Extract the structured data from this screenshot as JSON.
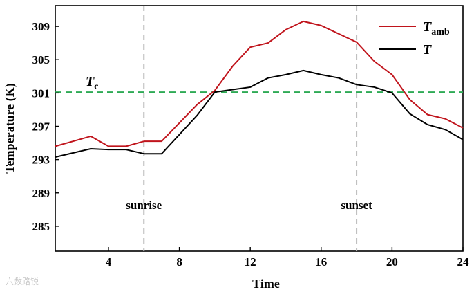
{
  "chart_data": {
    "type": "line",
    "xlabel": "Time",
    "ylabel": "Temperature (K)",
    "xlim": [
      1,
      24
    ],
    "ylim": [
      282,
      311.5
    ],
    "xticks": [
      4,
      8,
      12,
      16,
      20,
      24
    ],
    "yticks": [
      285,
      289,
      293,
      297,
      301,
      305,
      309
    ],
    "x": [
      1,
      2,
      3,
      4,
      5,
      6,
      7,
      8,
      9,
      10,
      11,
      12,
      13,
      14,
      15,
      16,
      17,
      18,
      19,
      20,
      21,
      22,
      23,
      24
    ],
    "series": [
      {
        "name": "T",
        "name_sub": "amb",
        "color": "#c0141c",
        "values": [
          294.6,
          295.2,
          295.8,
          294.6,
          294.6,
          295.2,
          295.2,
          297.4,
          299.6,
          301.3,
          304.2,
          306.5,
          307.0,
          308.6,
          309.6,
          309.1,
          308.1,
          307.1,
          304.8,
          303.2,
          300.2,
          298.4,
          297.9,
          296.8
        ],
        "values_note": "",
        "legend": "top-right"
      },
      {
        "name": "T",
        "name_sub": "",
        "color": "#000000",
        "values": [
          293.3,
          293.8,
          294.3,
          294.2,
          294.2,
          293.7,
          293.7,
          296.0,
          298.3,
          301.1,
          301.4,
          301.7,
          302.8,
          303.2,
          303.7,
          303.2,
          302.8,
          302.0,
          301.7,
          301.0,
          298.5,
          297.2,
          296.6,
          295.4
        ]
      }
    ],
    "reference_lines": [
      {
        "axis": "y",
        "value": 301.1,
        "label": "T",
        "label_sub": "c",
        "color": "#2eaa55",
        "style": "dashed"
      },
      {
        "axis": "x",
        "value": 6,
        "label": "sunrise",
        "color": "#bbbbbb",
        "style": "dashed"
      },
      {
        "axis": "x",
        "value": 18,
        "label": "sunset",
        "color": "#bbbbbb",
        "style": "dashed"
      }
    ],
    "grid": false
  },
  "watermark": "六数路锐"
}
